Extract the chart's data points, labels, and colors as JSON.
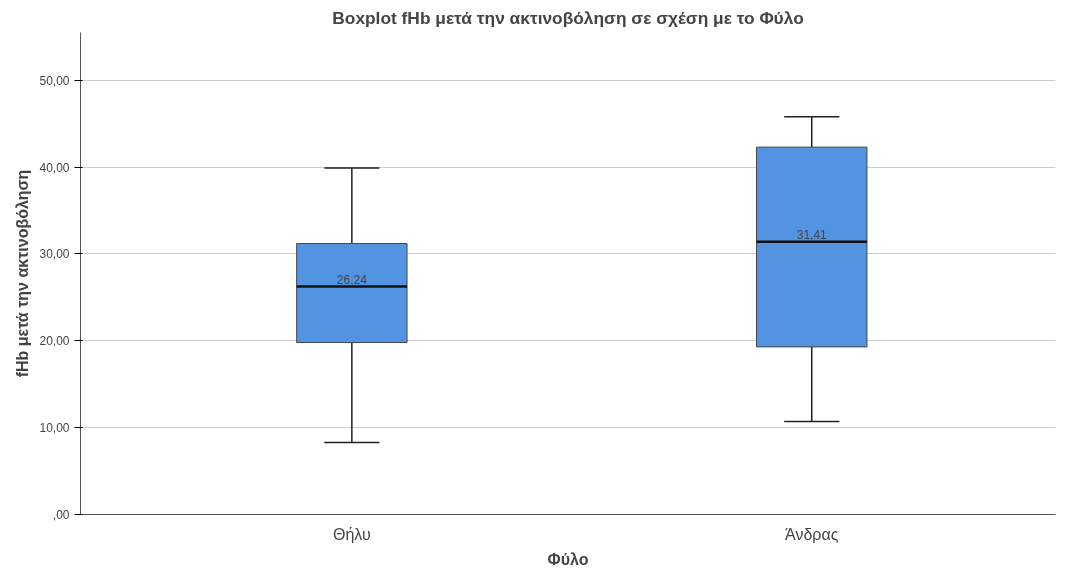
{
  "chart_data": {
    "type": "box",
    "title": "Boxplot fHb μετά την ακτινοβόληση σε σχέση με το Φύλο",
    "xlabel": "Φύλο",
    "ylabel": "fHb μετά την ακτινοβόληση",
    "categories": [
      "Θήλυ",
      "Άνδρας"
    ],
    "boxes": [
      {
        "low": 8.3,
        "q1": 19.8,
        "median": 26.24,
        "q3": 31.2,
        "high": 39.9
      },
      {
        "low": 10.7,
        "q1": 19.3,
        "median": 31.41,
        "q3": 42.3,
        "high": 45.8
      }
    ],
    "color": "#5294e2",
    "annotations": [
      {
        "text": "26,24",
        "x": "Θήλυ",
        "y": 26.24
      },
      {
        "text": "31,41",
        "x": "Άνδρας",
        "y": 31.41
      }
    ],
    "ylim": [
      0,
      55.5
    ],
    "yticks": [
      {
        "value": 0,
        "label": ",00"
      },
      {
        "value": 10,
        "label": "10,00"
      },
      {
        "value": 20,
        "label": "20,00"
      },
      {
        "value": 30,
        "label": "30,00"
      },
      {
        "value": 40,
        "label": "40,00"
      },
      {
        "value": 50,
        "label": "50,00"
      }
    ],
    "grid": "y"
  }
}
